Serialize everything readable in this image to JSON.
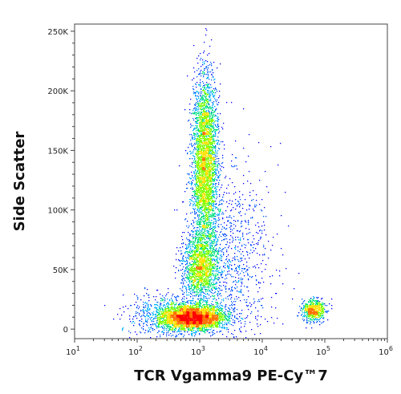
{
  "chart_data": {
    "type": "scatter",
    "subtype": "flow-cytometry-density-dot-plot",
    "xlabel": "TCR Vgamma9 PE-Cy™7",
    "ylabel": "Side Scatter",
    "x_scale": "log",
    "y_scale": "linear",
    "xlim": [
      10,
      1000000
    ],
    "ylim": [
      -8000,
      256000
    ],
    "x_ticks": [
      {
        "value": 10,
        "base": "10",
        "exp": "1"
      },
      {
        "value": 100,
        "base": "10",
        "exp": "2"
      },
      {
        "value": 1000,
        "base": "10",
        "exp": "3"
      },
      {
        "value": 10000,
        "base": "10",
        "exp": "4"
      },
      {
        "value": 100000,
        "base": "10",
        "exp": "5"
      },
      {
        "value": 1000000,
        "base": "10",
        "exp": "6"
      }
    ],
    "y_ticks": [
      {
        "value": 0,
        "label": "0"
      },
      {
        "value": 50000,
        "label": "50K"
      },
      {
        "value": 100000,
        "label": "100K"
      },
      {
        "value": 150000,
        "label": "150K"
      },
      {
        "value": 200000,
        "label": "200K"
      },
      {
        "value": 250000,
        "label": "250K"
      }
    ],
    "populations": [
      {
        "x_center": 800,
        "y_center": 10000,
        "x_spread_decades": 0.24,
        "y_spread": 5000,
        "weight": 0.3
      },
      {
        "x_center": 1200,
        "y_center": 140000,
        "x_spread_decades": 0.1,
        "y_spread": 36000,
        "weight": 0.33
      },
      {
        "x_center": 1000,
        "y_center": 52000,
        "x_spread_decades": 0.15,
        "y_spread": 13000,
        "weight": 0.14
      },
      {
        "x_center": 65000,
        "y_center": 16000,
        "x_spread_decades": 0.09,
        "y_spread": 4500,
        "weight": 0.06
      },
      {
        "x_center": 3000,
        "y_center": 60000,
        "x_spread_decades": 0.35,
        "y_spread": 40000,
        "weight": 0.09
      },
      {
        "x_center": 350,
        "y_center": 12000,
        "x_spread_decades": 0.3,
        "y_spread": 9000,
        "weight": 0.08
      }
    ],
    "density_colors": [
      "#0000ff",
      "#0055ff",
      "#00b0ff",
      "#00e080",
      "#7fff00",
      "#ffe000",
      "#ff7000",
      "#ff0000"
    ],
    "grid": false,
    "legend": "none"
  }
}
